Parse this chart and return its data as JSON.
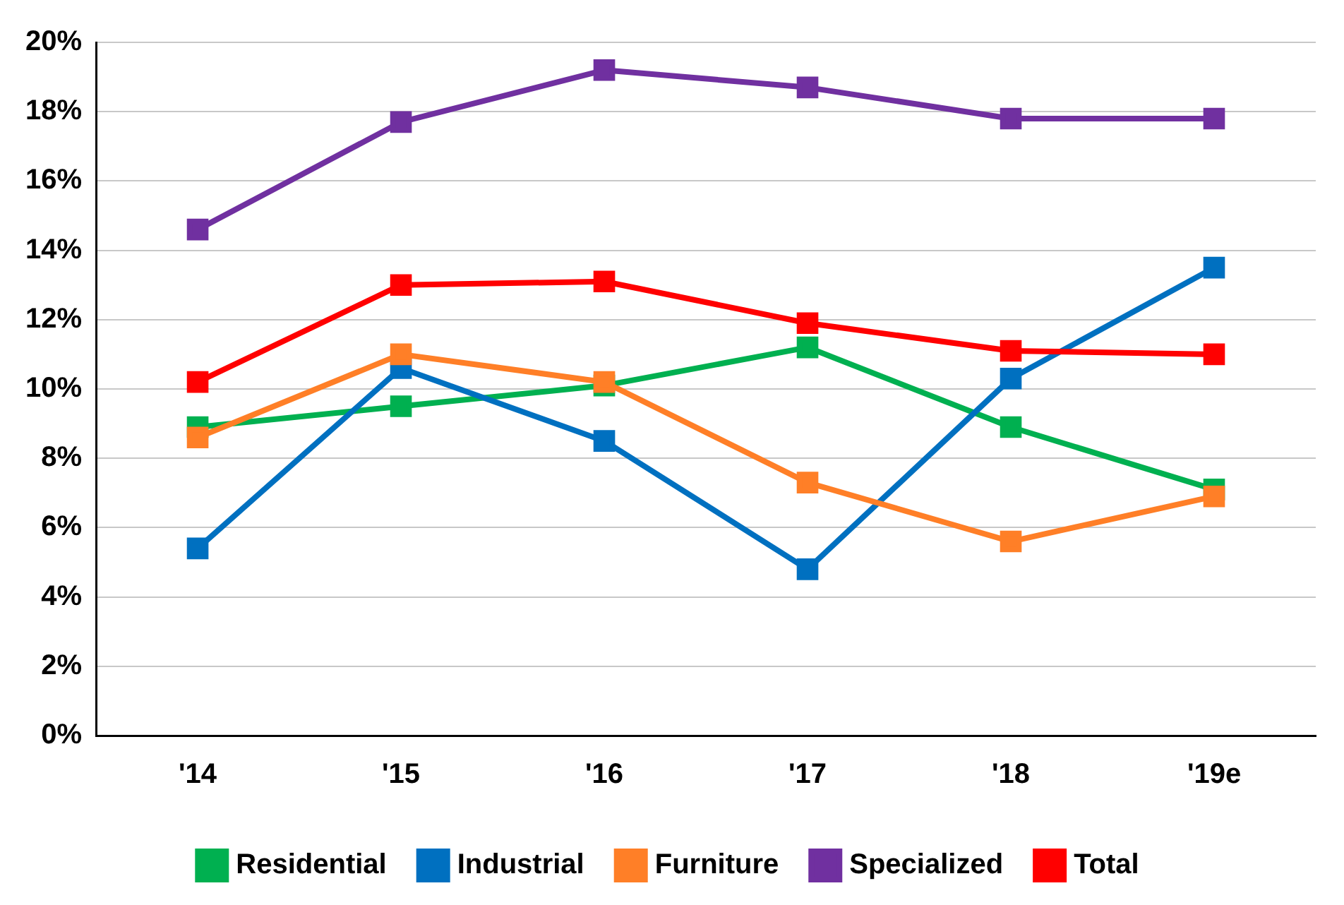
{
  "chart_data": {
    "type": "line",
    "categories": [
      "'14",
      "'15",
      "'16",
      "'17",
      "'18",
      "'19e"
    ],
    "series": [
      {
        "name": "Residential",
        "color": "#00b050",
        "values": [
          8.9,
          9.5,
          10.1,
          11.2,
          8.9,
          7.1
        ]
      },
      {
        "name": "Industrial",
        "color": "#0070c0",
        "values": [
          5.4,
          10.6,
          8.5,
          4.8,
          10.3,
          13.5
        ]
      },
      {
        "name": "Furniture",
        "color": "#ff7f27",
        "values": [
          8.6,
          11.0,
          10.2,
          7.3,
          5.6,
          6.9
        ]
      },
      {
        "name": "Specialized",
        "color": "#7030a0",
        "values": [
          14.6,
          17.7,
          19.2,
          18.7,
          17.8,
          17.8
        ]
      },
      {
        "name": "Total",
        "color": "#ff0000",
        "values": [
          10.2,
          13.0,
          13.1,
          11.9,
          11.1,
          11.0
        ]
      }
    ],
    "ylim": [
      0,
      20
    ],
    "yticks": [
      {
        "value": 0,
        "label": "0%"
      },
      {
        "value": 2,
        "label": "2%"
      },
      {
        "value": 4,
        "label": "4%"
      },
      {
        "value": 6,
        "label": "6%"
      },
      {
        "value": 8,
        "label": "8%"
      },
      {
        "value": 10,
        "label": "10%"
      },
      {
        "value": 12,
        "label": "12%"
      },
      {
        "value": 14,
        "label": "14%"
      },
      {
        "value": 16,
        "label": "16%"
      },
      {
        "value": 18,
        "label": "18%"
      },
      {
        "value": 20,
        "label": "20%"
      }
    ],
    "grid": "y",
    "legend": "bottom",
    "marker": "square",
    "line_style": "solid"
  }
}
